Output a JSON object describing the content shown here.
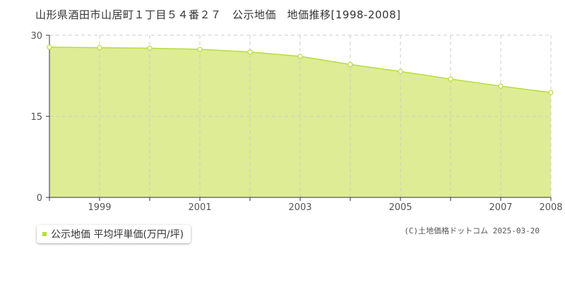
{
  "title": "山形県酒田市山居町１丁目５４番２７　公示地価　地価推移[1998-2008]",
  "legend": {
    "label": "公示地価 平均坪単価(万円/坪)"
  },
  "credit": "(C)土地価格ドットコム 2025-03-20",
  "colors": {
    "fill": "#dceb8f",
    "line": "#b8dc3c",
    "grid": "#cccccc",
    "axis": "#333333"
  },
  "chart_data": {
    "type": "area",
    "x": [
      1998,
      1999,
      2000,
      2001,
      2002,
      2003,
      2004,
      2005,
      2006,
      2007,
      2008
    ],
    "series": [
      {
        "name": "公示地価 平均坪単価(万円/坪)",
        "values": [
          27.8,
          27.7,
          27.6,
          27.4,
          26.9,
          26.1,
          24.6,
          23.3,
          21.9,
          20.6,
          19.4
        ]
      }
    ],
    "xticks": [
      "1999",
      "2001",
      "2003",
      "2005",
      "2007",
      "2008"
    ],
    "yticks": [
      "0",
      "15",
      "30"
    ],
    "ylim": [
      0,
      30
    ],
    "xlim": [
      1998,
      2008
    ],
    "grid": true
  }
}
